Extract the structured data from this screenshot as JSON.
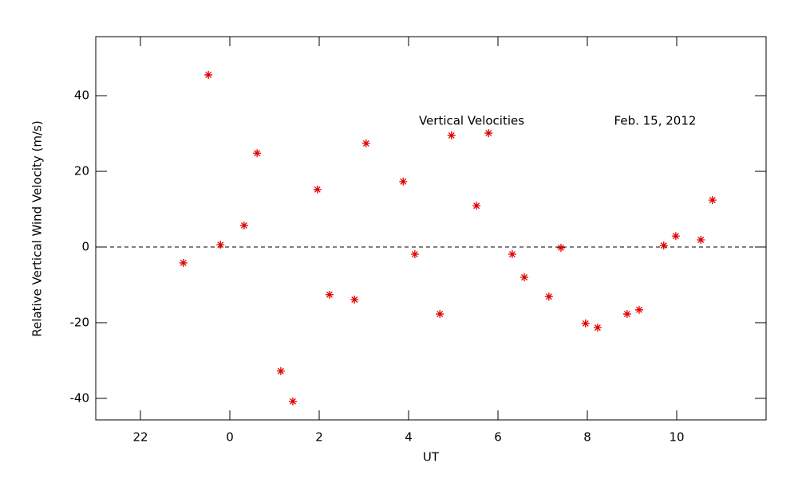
{
  "chart_data": {
    "type": "scatter",
    "x_label": "UT",
    "y_label": "Relative Vertical Wind Velocity (m/s)",
    "annotations": [
      "Vertical Velocities",
      "Feb. 15, 2012"
    ],
    "series": [
      {
        "color": "#e00000",
        "marker": "asterisk",
        "x": [
          -1.04,
          -0.48,
          -0.21,
          0.32,
          0.61,
          1.14,
          1.41,
          1.96,
          2.23,
          2.79,
          3.05,
          3.88,
          4.14,
          4.7,
          4.96,
          5.52,
          5.79,
          6.32,
          6.59,
          7.14,
          7.41,
          7.96,
          8.23,
          8.89,
          9.16,
          9.71,
          9.98,
          10.54,
          10.8
        ],
        "values": [
          -4.2,
          45.5,
          0.6,
          5.7,
          24.8,
          -32.8,
          -40.8,
          15.2,
          -12.6,
          -13.9,
          27.4,
          17.3,
          -1.9,
          -17.7,
          29.5,
          10.9,
          30.1,
          -1.9,
          -8.0,
          -13.1,
          -0.2,
          -20.2,
          -21.3,
          -17.7,
          -16.6,
          0.4,
          2.9,
          1.9,
          12.4
        ]
      }
    ],
    "reference_line": 0,
    "xlim": [
      -3,
      12
    ],
    "xticks": [
      {
        "value": -2,
        "label": "22"
      },
      0,
      2,
      4,
      6,
      8,
      10
    ],
    "ylim": [
      -45.7,
      55.6
    ],
    "yticks": [
      -40,
      -20,
      0,
      20,
      40
    ]
  }
}
